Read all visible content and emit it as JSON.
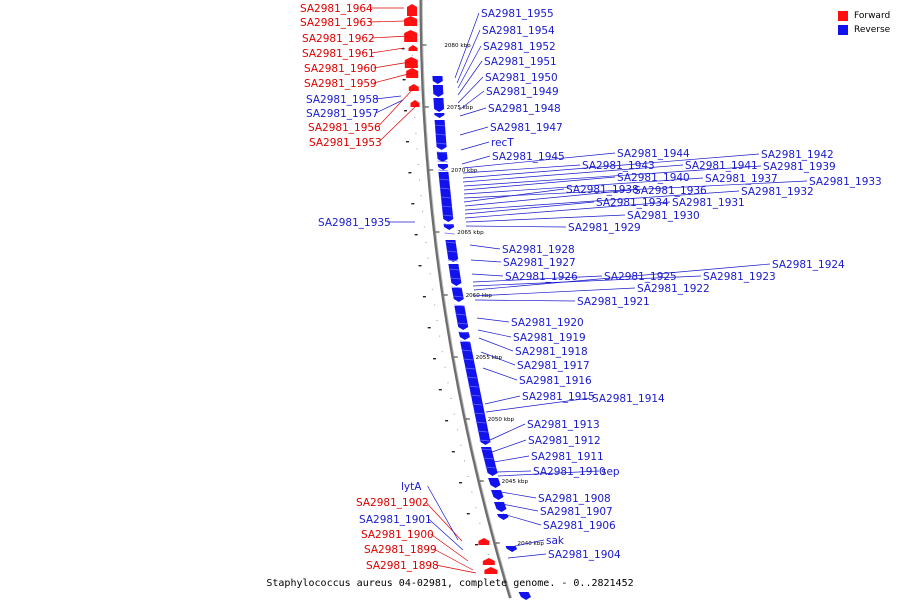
{
  "colors": {
    "forward": "#ff1010",
    "reverse": "#1212ee",
    "backbone": "#6e6e6e",
    "label_forward": "#dd0000",
    "label_reverse": "#1a1acc"
  },
  "legend": [
    {
      "label": "Forward",
      "color": "#ff1010"
    },
    {
      "label": "Reverse",
      "color": "#1212ee"
    }
  ],
  "caption": "Staphylococcus aureus 04-02981, complete genome. - 0..2821452",
  "ticks": [
    "2080 kbp",
    "2075 kbp",
    "2070 kbp",
    "2065 kbp",
    "2060 kbp",
    "2055 kbp",
    "2050 kbp",
    "2045 kbp",
    "2040 kbp"
  ],
  "forward_labels": [
    "SA2981_1964",
    "SA2981_1963",
    "SA2981_1962",
    "SA2981_1961",
    "SA2981_1960",
    "SA2981_1959",
    "SA2981_1956",
    "SA2981_1953",
    "SA2981_1902",
    "SA2981_1900",
    "SA2981_1899",
    "SA2981_1898"
  ],
  "reverse_labels": [
    "SA2981_1958",
    "SA2981_1957",
    "SA2981_1935",
    "lytA",
    "SA2981_1901",
    "SA2981_1955",
    "SA2981_1954",
    "SA2981_1952",
    "SA2981_1951",
    "SA2981_1950",
    "SA2981_1949",
    "SA2981_1948",
    "SA2981_1947",
    "recT",
    "SA2981_1945",
    "SA2981_1944",
    "SA2981_1943",
    "SA2981_1942",
    "SA2981_1941",
    "SA2981_1939",
    "SA2981_1940",
    "SA2981_1937",
    "SA2981_1933",
    "SA2981_1938",
    "SA2981_1936",
    "SA2981_1932",
    "SA2981_1934",
    "SA2981_1931",
    "SA2981_1930",
    "SA2981_1929",
    "SA2981_1928",
    "SA2981_1927",
    "SA2981_1926",
    "SA2981_1925",
    "SA2981_1923",
    "SA2981_1924",
    "SA2981_1922",
    "SA2981_1921",
    "SA2981_1920",
    "SA2981_1919",
    "SA2981_1918",
    "SA2981_1917",
    "SA2981_1916",
    "SA2981_1915",
    "SA2981_1914",
    "SA2981_1913",
    "SA2981_1912",
    "SA2981_1911",
    "SA2981_1910",
    "sep",
    "SA2981_1908",
    "SA2981_1907",
    "SA2981_1906",
    "sak",
    "SA2981_1904"
  ]
}
